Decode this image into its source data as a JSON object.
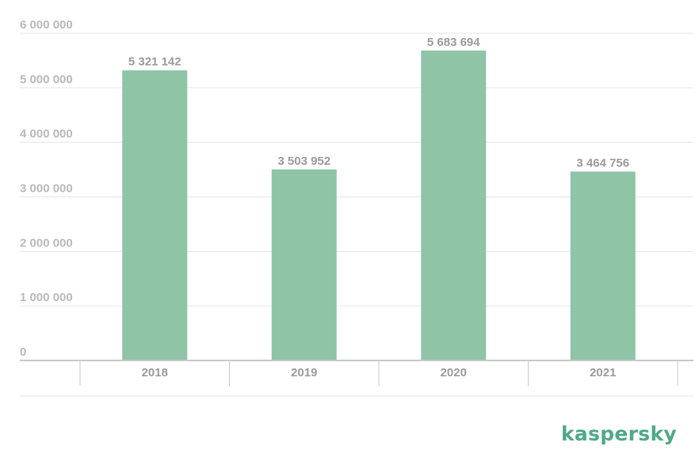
{
  "brand": {
    "logo_text": "kaspersky",
    "color": "#4fa987"
  },
  "chart_data": {
    "type": "bar",
    "categories": [
      "2018",
      "2019",
      "2020",
      "2021"
    ],
    "values": [
      5321142,
      3503952,
      5683694,
      3464756
    ],
    "data_labels": [
      "5 321 142",
      "3 503 952",
      "5 683 694",
      "3 464 756"
    ],
    "yticks": [
      0,
      1000000,
      2000000,
      3000000,
      4000000,
      5000000,
      6000000
    ],
    "ytick_labels": [
      "0",
      "1 000 000",
      "2 000 000",
      "3 000 000",
      "4 000 000",
      "5 000 000",
      "6 000 000"
    ],
    "ylim": [
      0,
      6000000
    ],
    "grid": true,
    "legend": "none",
    "bar_color": "#8fc4a7",
    "title": "",
    "xlabel": "",
    "ylabel": ""
  }
}
